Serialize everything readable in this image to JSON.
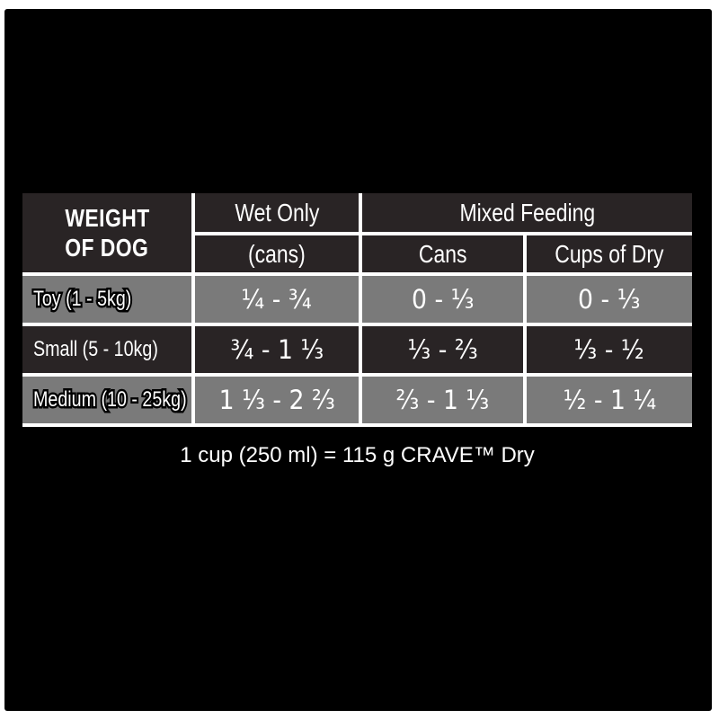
{
  "colors": {
    "panel_bg": "#000000",
    "dark_cell": "#292425",
    "gray_cell": "#7a7a7a",
    "divider": "#ffffff",
    "text": "#ffffff"
  },
  "table": {
    "header": {
      "weight_line1": "WEIGHT",
      "weight_line2": "OF DOG",
      "wet_only": "Wet Only",
      "wet_only_sub": "(cans)",
      "mixed_feeding": "Mixed Feeding",
      "mixed_cans": "Cans",
      "mixed_cups": "Cups of Dry"
    },
    "rows": [
      {
        "label": "Toy (1 - 5kg)",
        "wet_only": "¼ - ¾",
        "mixed_cans": "0 - ⅓",
        "mixed_cups": "0 - ⅓"
      },
      {
        "label": "Small (5 - 10kg)",
        "wet_only": "¾ - 1 ⅓",
        "mixed_cans": "⅓ - ⅔",
        "mixed_cups": "⅓ - ½"
      },
      {
        "label": "Medium (10 - 25kg)",
        "wet_only": "1 ⅓ - 2 ⅔",
        "mixed_cans": "⅔ - 1 ⅓",
        "mixed_cups": "½ - 1 ¼"
      }
    ]
  },
  "footer": {
    "note": "1 cup (250 ml) = 115 g CRAVE™ Dry"
  }
}
